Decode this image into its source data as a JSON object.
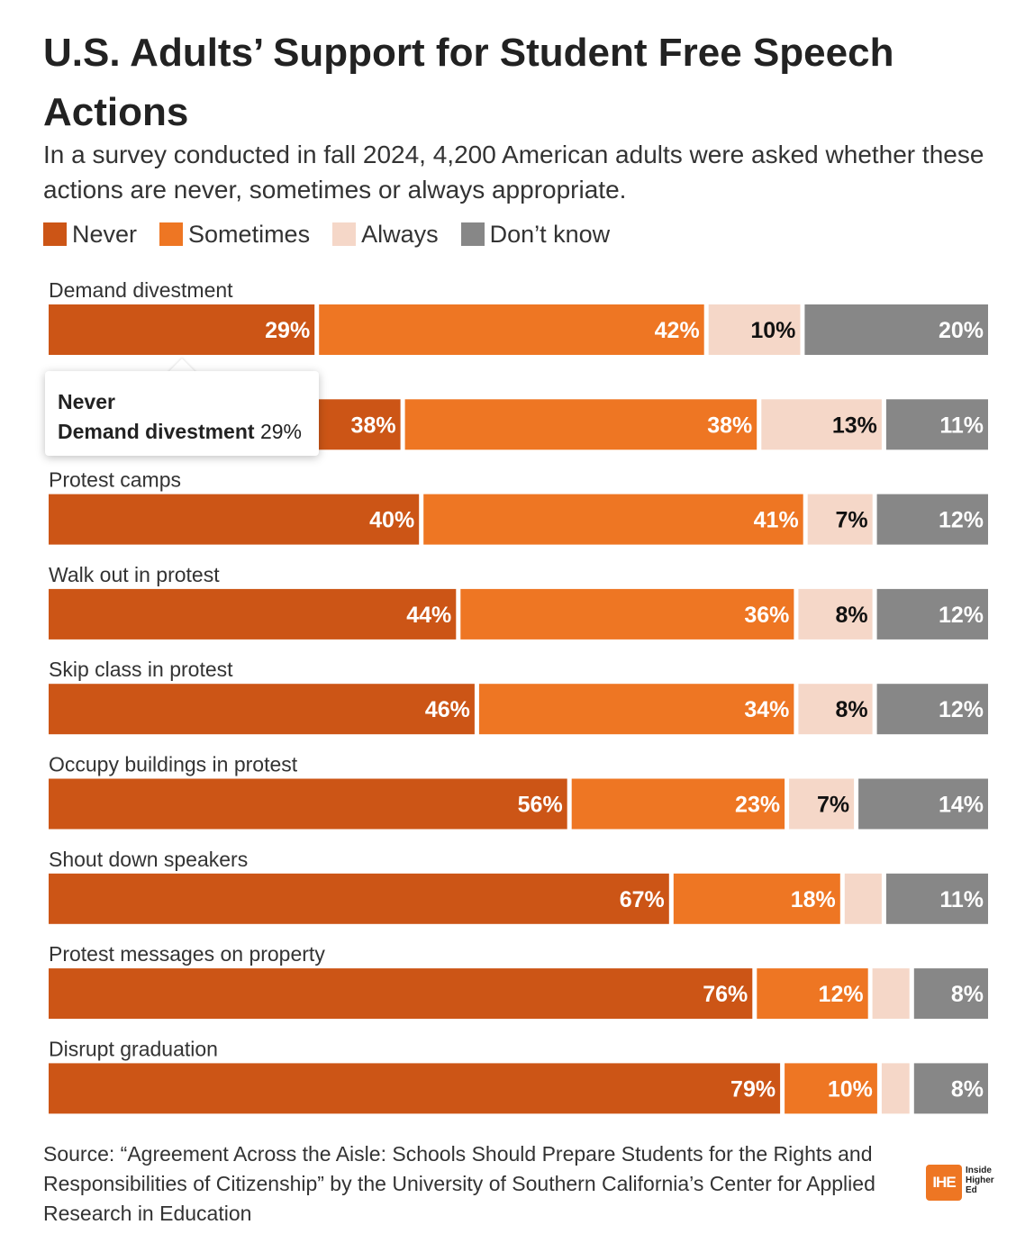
{
  "title": "U.S. Adults’ Support for Student Free Speech Actions",
  "subtitle": "In a survey conducted in fall 2024, 4,200 American adults were asked whether these actions are never, sometimes or always appropriate.",
  "legend": [
    {
      "label": "Never",
      "color": "#cc5516"
    },
    {
      "label": "Sometimes",
      "color": "#ee7623"
    },
    {
      "label": "Always",
      "color": "#f5d7c8"
    },
    {
      "label": "Don’t know",
      "color": "#878787"
    }
  ],
  "tooltip": {
    "series": "Never",
    "category": "Demand divestment",
    "value": "29%"
  },
  "source": "Source: “Agreement Across the Aisle: Schools Should Prepare Students for the Rights and Responsibilities of Citizenship” by the University of Southern California’s Center for Applied Research in Education",
  "logo": {
    "mark": "IHE",
    "text_line1": "Inside",
    "text_line2": "Higher",
    "text_line3": "Ed"
  },
  "chart_data": {
    "type": "bar",
    "orientation": "horizontal",
    "stacked": true,
    "unit": "%",
    "categories": [
      "Demand divestment",
      "",
      "Protest camps",
      "Walk out in protest",
      "Skip class in protest",
      "Occupy buildings in protest",
      "Shout down speakers",
      "Protest messages on property",
      "Disrupt graduation"
    ],
    "series": [
      {
        "name": "Never",
        "color": "#cc5516",
        "label_color": "#ffffff",
        "values": [
          29,
          38,
          40,
          44,
          46,
          56,
          67,
          76,
          79
        ]
      },
      {
        "name": "Sometimes",
        "color": "#ee7623",
        "label_color": "#ffffff",
        "values": [
          42,
          38,
          41,
          36,
          34,
          23,
          18,
          12,
          10
        ]
      },
      {
        "name": "Always",
        "color": "#f5d7c8",
        "label_color": "#111111",
        "values": [
          10,
          13,
          7,
          8,
          8,
          7,
          4,
          4,
          3
        ]
      },
      {
        "name": "Don’t know",
        "color": "#878787",
        "label_color": "#ffffff",
        "values": [
          20,
          11,
          12,
          12,
          12,
          14,
          11,
          8,
          8
        ]
      }
    ],
    "data_labels": [
      [
        "29%",
        "42%",
        "10%",
        "20%"
      ],
      [
        "38%",
        "38%",
        "13%",
        "11%"
      ],
      [
        "40%",
        "41%",
        "7%",
        "12%"
      ],
      [
        "44%",
        "36%",
        "8%",
        "12%"
      ],
      [
        "46%",
        "34%",
        "8%",
        "12%"
      ],
      [
        "56%",
        "23%",
        "7%",
        "14%"
      ],
      [
        "67%",
        "18%",
        "",
        "11%"
      ],
      [
        "76%",
        "12%",
        "",
        "8%"
      ],
      [
        "79%",
        "10%",
        "",
        "8%"
      ]
    ]
  }
}
